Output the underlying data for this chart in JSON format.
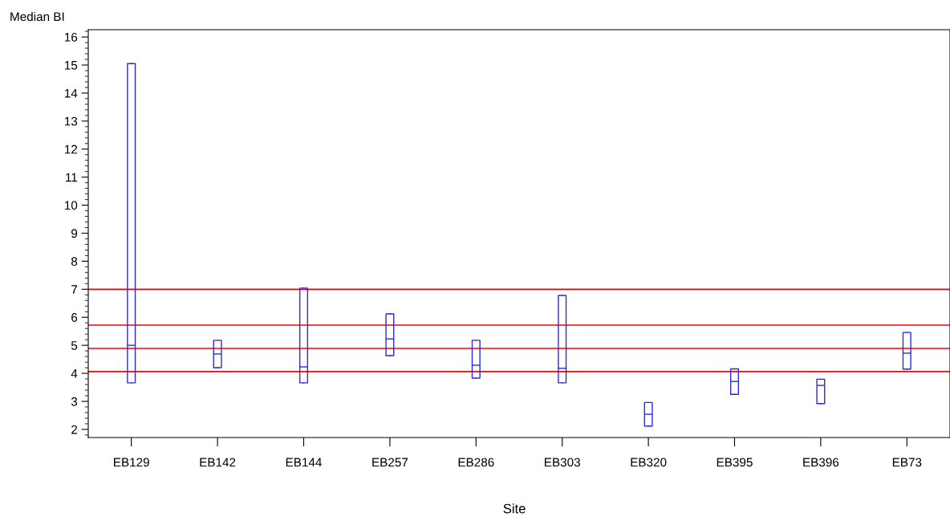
{
  "chart_data": {
    "type": "box",
    "xlabel": "Site",
    "ylabel": "Median BI",
    "categories": [
      "EB129",
      "EB142",
      "EB144",
      "EB257",
      "EB286",
      "EB303",
      "EB320",
      "EB395",
      "EB396",
      "EB73"
    ],
    "color": "#2b2bdc",
    "boxes": [
      {
        "low": 3.66,
        "q1": 3.66,
        "median": 5.0,
        "q3": 15.05,
        "high": 15.05
      },
      {
        "low": 4.2,
        "q1": 4.2,
        "median": 4.69,
        "q3": 5.18,
        "high": 5.18
      },
      {
        "low": 3.66,
        "q1": 3.66,
        "median": 4.23,
        "q3": 7.04,
        "high": 7.04
      },
      {
        "low": 4.63,
        "q1": 4.63,
        "median": 5.23,
        "q3": 6.12,
        "high": 6.12
      },
      {
        "low": 3.83,
        "q1": 3.83,
        "median": 4.29,
        "q3": 5.18,
        "high": 5.18
      },
      {
        "low": 3.66,
        "q1": 3.66,
        "median": 4.18,
        "q3": 6.78,
        "high": 6.78
      },
      {
        "low": 2.12,
        "q1": 2.12,
        "median": 2.54,
        "q3": 2.96,
        "high": 2.96
      },
      {
        "low": 3.25,
        "q1": 3.25,
        "median": 3.71,
        "q3": 4.16,
        "high": 4.16
      },
      {
        "low": 2.92,
        "q1": 2.92,
        "median": 3.57,
        "q3": 3.79,
        "high": 3.79
      },
      {
        "low": 4.15,
        "q1": 4.15,
        "median": 4.72,
        "q3": 5.46,
        "high": 5.46
      }
    ],
    "ylim": [
      1.71,
      16.26
    ],
    "yticks": [
      2,
      3,
      4,
      5,
      6,
      7,
      8,
      9,
      10,
      11,
      12,
      13,
      14,
      15,
      16
    ],
    "ref_lines": [
      {
        "axis": "y",
        "value": 7.0,
        "color": "#ff0000"
      },
      {
        "axis": "y",
        "value": 5.72,
        "color": "#ff0000"
      },
      {
        "axis": "y",
        "value": 4.89,
        "color": "#ff0000"
      },
      {
        "axis": "y",
        "value": 4.06,
        "color": "#ff0000"
      }
    ],
    "grid": false,
    "legend": false
  }
}
